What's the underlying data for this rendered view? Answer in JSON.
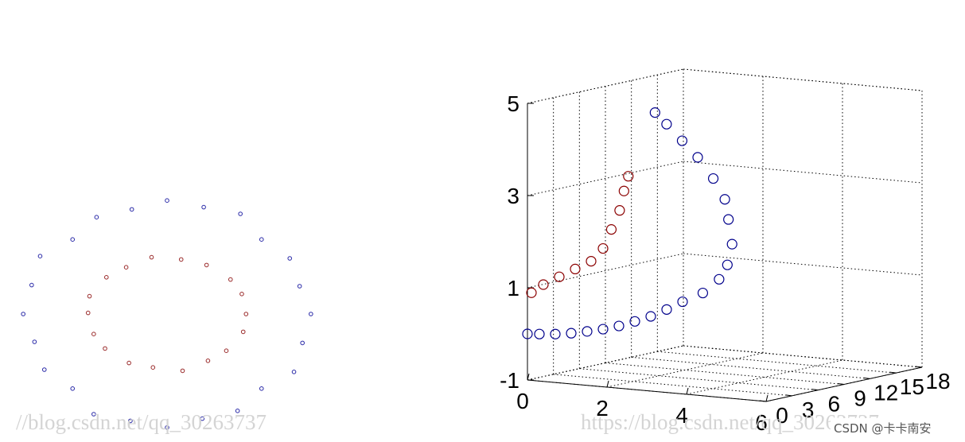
{
  "chart_data": [
    {
      "type": "scatter",
      "xlim": [
        -1.1,
        1.1
      ],
      "ylim": [
        -1.1,
        1.1
      ],
      "series": [
        {
          "color": "#2a2aa8",
          "x": [
            1.02,
            0.94,
            0.87,
            0.67,
            0.52,
            0.26,
            0,
            -0.25,
            -0.5,
            -0.67,
            -0.9,
            -0.96,
            -1.02,
            -0.94,
            -0.87,
            -0.67,
            -0.52,
            -0.26,
            0,
            0.25,
            0.5,
            0.67,
            0.9,
            0.96
          ],
          "y": [
            0,
            0.25,
            0.5,
            0.67,
            0.9,
            0.96,
            1.02,
            0.94,
            0.87,
            0.67,
            0.52,
            0.26,
            0,
            -0.25,
            -0.5,
            -0.67,
            -0.9,
            -0.96,
            -1.02,
            -0.94,
            -0.87,
            -0.67,
            -0.52,
            -0.26
          ]
        },
        {
          "color": "#9a2a2a",
          "x": [
            0.56,
            0.53,
            0.45,
            0.28,
            0.1,
            -0.11,
            -0.29,
            -0.43,
            -0.55,
            -0.56,
            -0.52,
            -0.44,
            -0.27,
            -0.1,
            0.11,
            0.29,
            0.42,
            0.54
          ],
          "y": [
            0,
            0.18,
            0.31,
            0.44,
            0.49,
            0.51,
            0.42,
            0.33,
            0.16,
            0.01,
            -0.18,
            -0.31,
            -0.44,
            -0.48,
            -0.51,
            -0.42,
            -0.33,
            -0.16
          ]
        }
      ]
    },
    {
      "type": "scatter3d",
      "xlim": [
        0,
        6
      ],
      "ylim": [
        0,
        18
      ],
      "zlim": [
        -1,
        5
      ],
      "xticks": [
        0,
        2,
        4,
        6
      ],
      "yticks": [
        0,
        3,
        6,
        9,
        12,
        15,
        18
      ],
      "zticks": [
        -1,
        1,
        3,
        5
      ],
      "grid": true,
      "series": [
        {
          "color": "#00008b",
          "x": [
            0,
            0.3,
            0.7,
            1.1,
            1.5,
            1.9,
            2.3,
            2.7,
            3.1,
            3.5,
            3.9,
            4.3,
            4.6,
            4.7,
            4.6,
            4.4,
            4.2,
            3.8,
            3.3,
            2.8,
            2.3,
            1.9
          ],
          "y": [
            0,
            0,
            0,
            0,
            0,
            0,
            0,
            0,
            0,
            0,
            0,
            0.5,
            1,
            1.5,
            2.5,
            3,
            3.5,
            4,
            4.5,
            5,
            5.5,
            6
          ],
          "z": [
            0,
            0.02,
            0.05,
            0.1,
            0.17,
            0.25,
            0.35,
            0.48,
            0.62,
            0.8,
            1,
            1.2,
            1.5,
            1.8,
            2.2,
            2.7,
            3.1,
            3.5,
            3.9,
            4.2,
            4.5,
            4.7
          ]
        },
        {
          "color": "#8b0000",
          "x": [
            0.1,
            0.4,
            0.8,
            1.2,
            1.6,
            1.9,
            2,
            2.1,
            2.1,
            2.1
          ],
          "y": [
            0,
            0,
            0,
            0,
            0,
            0,
            0.5,
            1,
            1.5,
            2
          ],
          "z": [
            0.9,
            1.1,
            1.3,
            1.5,
            1.7,
            2,
            2.4,
            2.8,
            3.2,
            3.5
          ]
        }
      ]
    }
  ],
  "watermarks": [
    "//blog.csdn.net/qq_30263737",
    "https://blog.csdn.net/qq_30263737"
  ],
  "credit": "CSDN @卡卡南安"
}
